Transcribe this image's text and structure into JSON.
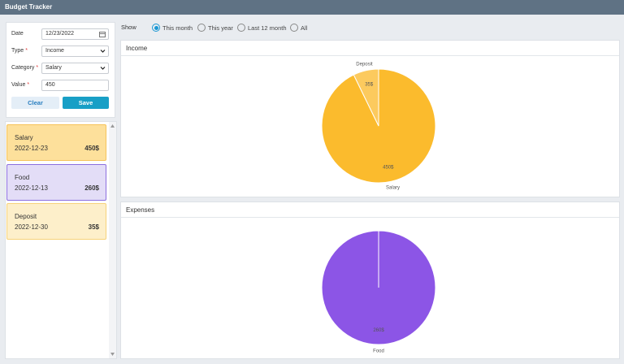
{
  "header": {
    "title": "Budget Tracker"
  },
  "form": {
    "fields": [
      {
        "label": "Date",
        "value": "12/23/2022"
      },
      {
        "label": "Type",
        "marker": "*",
        "value": "Income"
      },
      {
        "label": "Category",
        "marker": "*",
        "value": "Salary"
      },
      {
        "label": "Value",
        "marker": "*",
        "value": "450"
      }
    ],
    "buttons": [
      "Clear",
      "Save"
    ]
  },
  "entries": [
    {
      "name": "Salary",
      "date": "2022-12-23",
      "amount": "450$"
    },
    {
      "name": "Food",
      "date": "2022-12-13",
      "amount": "260$"
    },
    {
      "name": "Deposit",
      "date": "2022-12-30",
      "amount": "35$"
    }
  ],
  "filter": {
    "label": "Show",
    "options": [
      "This month",
      "This year",
      "Last 12 month",
      "All"
    ],
    "selected": 0
  },
  "chart_data": [
    {
      "type": "pie",
      "title": "Income",
      "categories": [
        "Salary",
        "Deposit"
      ],
      "values": [
        450,
        35
      ],
      "value_labels": [
        "450$",
        "35$"
      ],
      "colors": [
        "#fbbb2d",
        "#fcca5e"
      ]
    },
    {
      "type": "pie",
      "title": "Expenses",
      "categories": [
        "Food"
      ],
      "values": [
        260
      ],
      "value_labels": [
        "260$"
      ],
      "colors": [
        "#8c55e6"
      ]
    }
  ]
}
